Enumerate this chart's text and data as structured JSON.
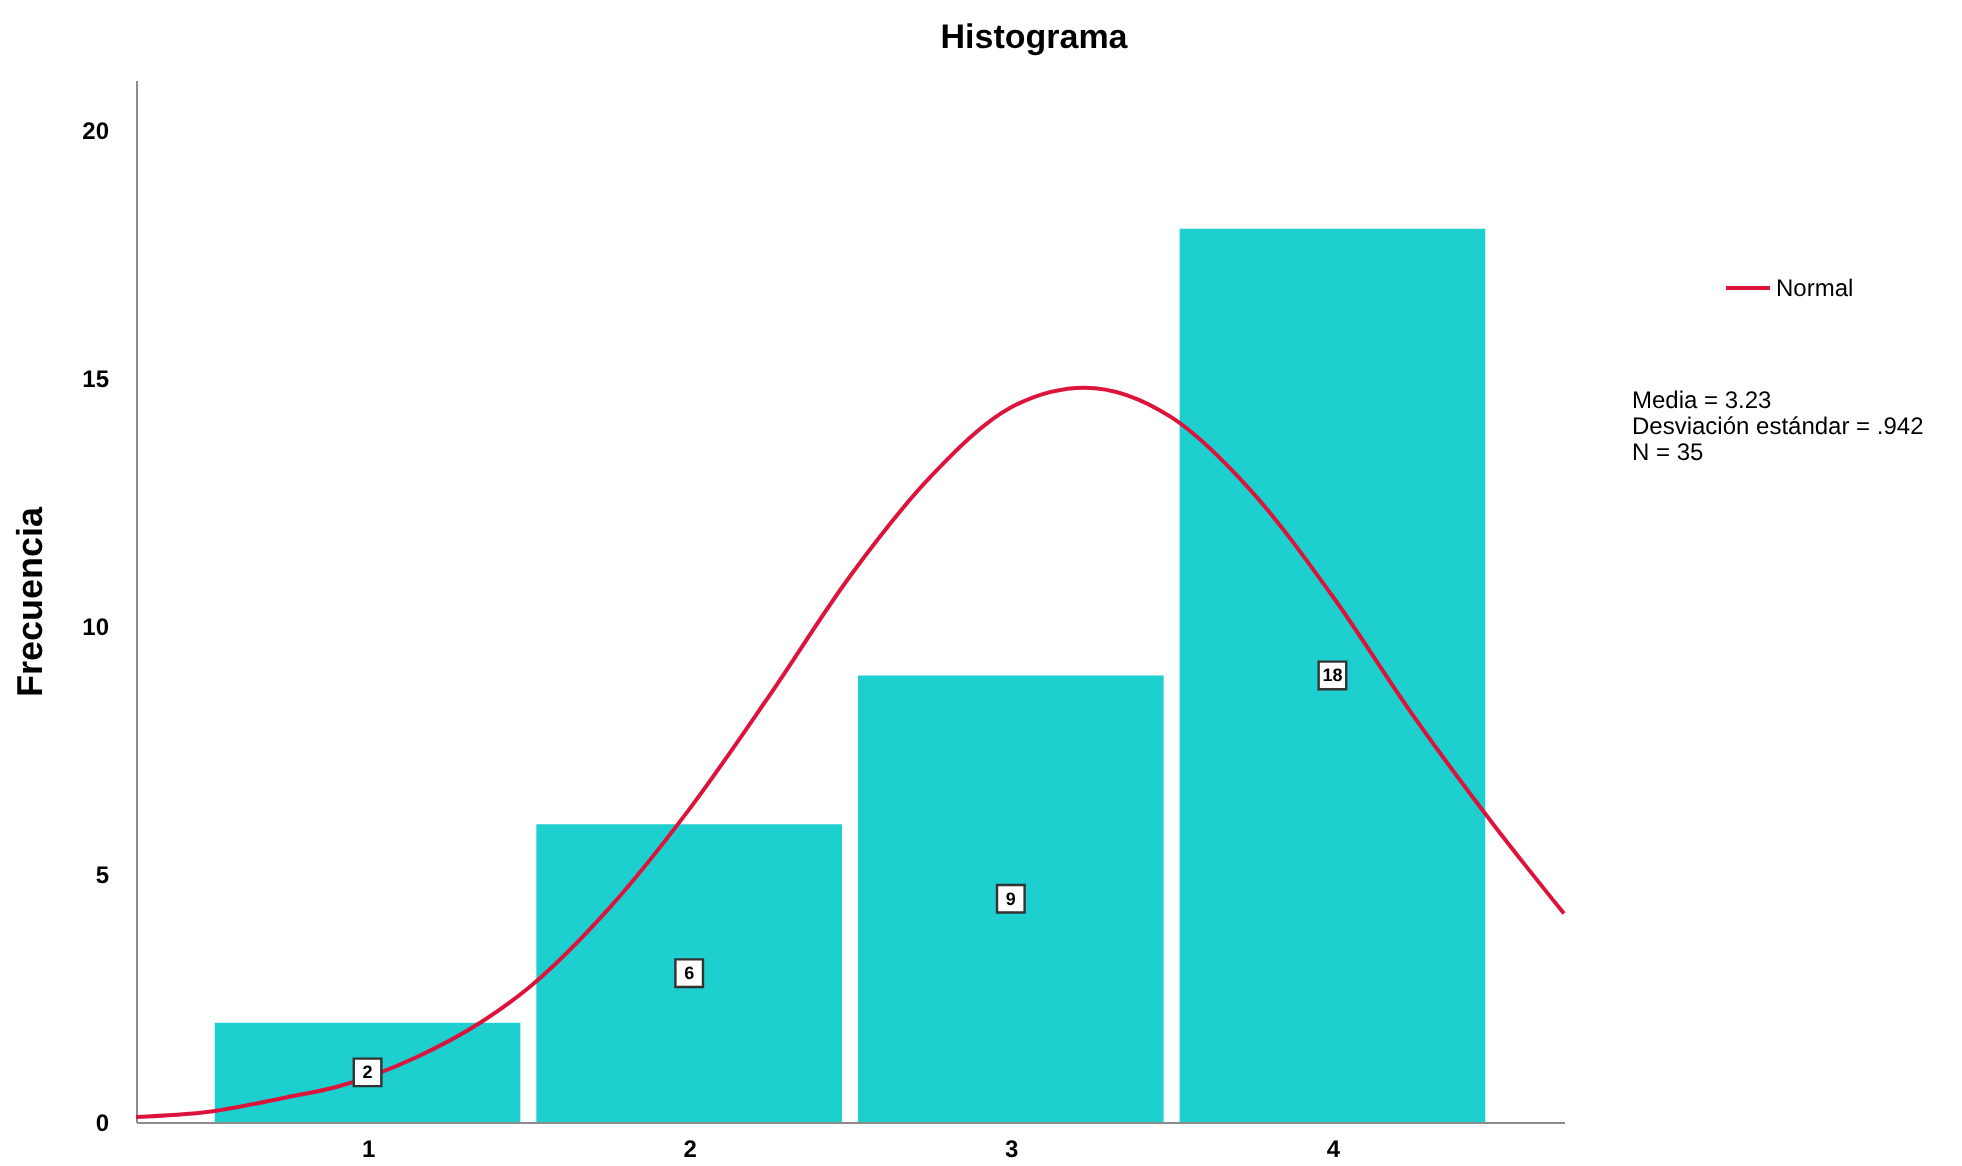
{
  "chart_data": {
    "type": "histogram",
    "title": "Histograma",
    "ylabel": "Frecuencia",
    "bins": [
      0.5,
      1.5,
      2.5,
      3.5,
      4.5
    ],
    "series": [
      {
        "color": "#1ecfcf",
        "values": [
          2,
          6,
          9,
          18
        ],
        "value_labels": [
          "2",
          "6",
          "9",
          "18"
        ]
      },
      {
        "type": "line",
        "name": "Normal",
        "color": "#dc143c",
        "x": [
          0.28,
          0.5,
          0.75,
          0.9,
          1.15,
          1.35,
          1.5,
          1.75,
          2,
          2.25,
          2.5,
          2.75,
          3,
          3.23,
          3.5,
          3.75,
          4,
          4.25,
          4.5,
          4.72
        ],
        "values": [
          0.1,
          0.2,
          0.5,
          0.7,
          1.3,
          2.0,
          2.7,
          4.3,
          6.3,
          8.6,
          11.0,
          13.0,
          14.4,
          14.8,
          14.2,
          12.7,
          10.6,
          8.2,
          6.0,
          4.2
        ]
      }
    ],
    "annotations": [
      "Media = 3.23",
      "Desviación estándar = .942",
      "N = 35"
    ],
    "xlim": [
      0.28,
      4.72
    ],
    "ylim": [
      0,
      21
    ],
    "xticks": [
      1,
      2,
      3,
      4
    ],
    "yticks": [
      0,
      5,
      10,
      15,
      20
    ],
    "grid": false,
    "legend": "top right"
  }
}
